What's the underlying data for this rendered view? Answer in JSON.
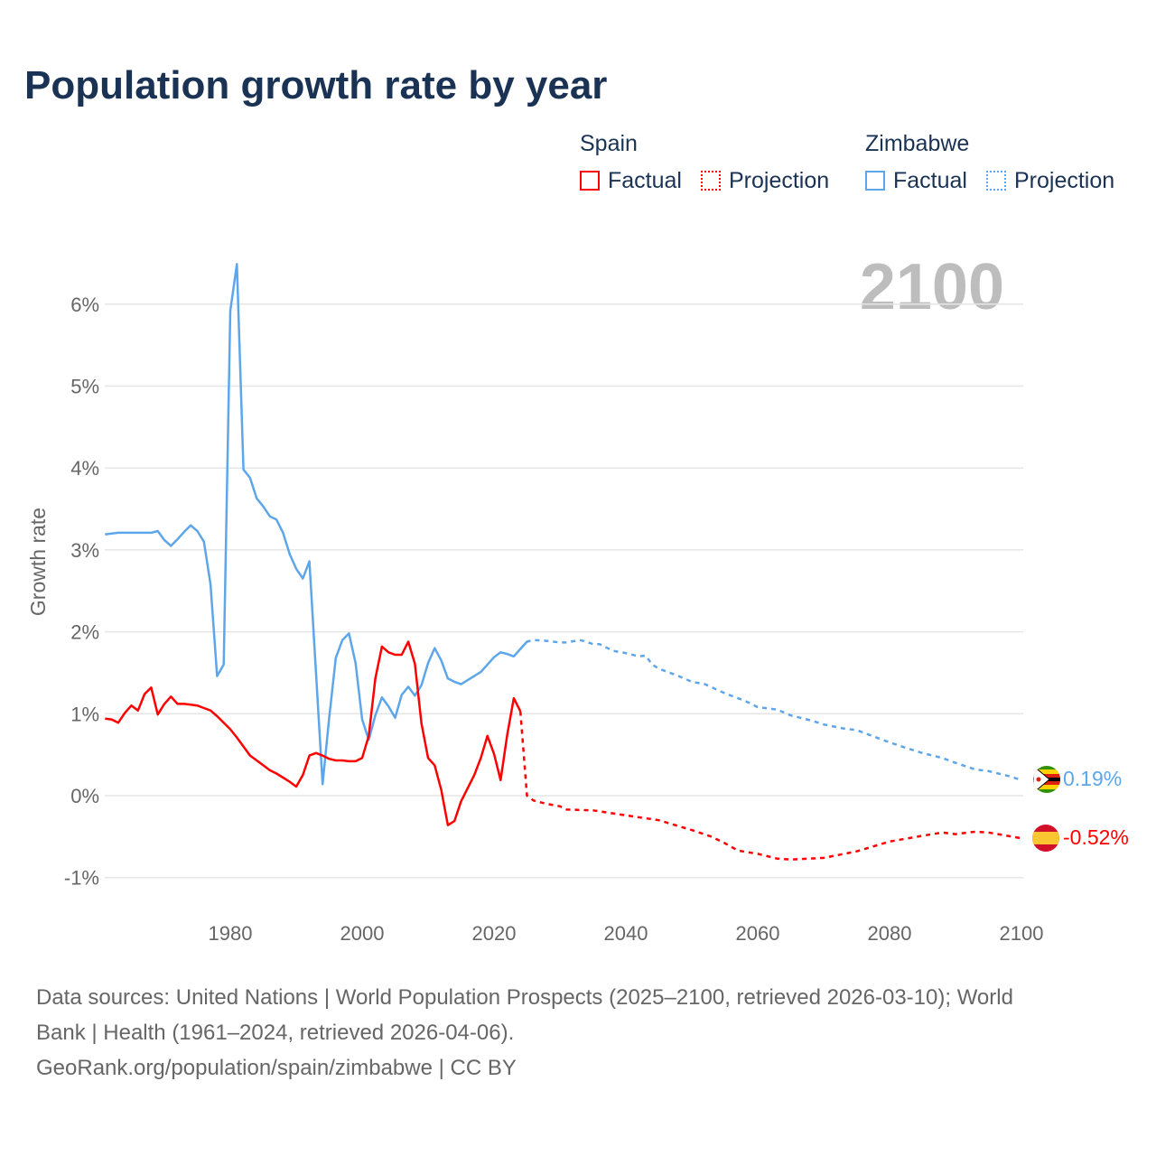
{
  "title": "Population growth rate by year",
  "legend": {
    "groups": [
      {
        "name": "Spain",
        "color": "#ff0000",
        "factual": "Factual",
        "projection": "Projection"
      },
      {
        "name": "Zimbabwe",
        "color": "#5ea6ea",
        "factual": "Factual",
        "projection": "Projection"
      }
    ]
  },
  "year_label": "2100",
  "end_labels": {
    "zimbabwe": "0.19%",
    "spain": "-0.52%"
  },
  "footer": {
    "line1": "Data sources: United Nations | World Population Prospects (2025–2100, retrieved 2026-03-10); World",
    "line2": "Bank | Health (1961–2024, retrieved 2026-04-06).",
    "line3": "GeoRank.org/population/spain/zimbabwe | CC BY"
  },
  "chart_data": {
    "type": "line",
    "title": "Population growth rate by year",
    "xlabel": "",
    "ylabel": "Growth rate",
    "xlim": [
      1961,
      2100
    ],
    "ylim": [
      -1.2,
      6.6
    ],
    "xticks": [
      1980,
      2000,
      2020,
      2040,
      2060,
      2080,
      2100
    ],
    "xtick_labels": [
      "1980",
      "2000",
      "2020",
      "2040",
      "2060",
      "2080",
      "2100"
    ],
    "yticks": [
      -1,
      0,
      1,
      2,
      3,
      4,
      5,
      6
    ],
    "ytick_labels": [
      "-1%",
      "0%",
      "1%",
      "2%",
      "3%",
      "4%",
      "5%",
      "6%"
    ],
    "grid": true,
    "series": [
      {
        "name": "Zimbabwe Factual",
        "color": "#5ea6ea",
        "dashed": false,
        "x_start": 1961,
        "values": [
          3.19,
          3.2,
          3.21,
          3.21,
          3.21,
          3.21,
          3.21,
          3.21,
          3.23,
          3.12,
          3.05,
          3.13,
          3.22,
          3.3,
          3.23,
          3.1,
          2.58,
          1.46,
          1.6,
          5.92,
          6.49,
          3.98,
          3.88,
          3.63,
          3.53,
          3.41,
          3.37,
          3.21,
          2.95,
          2.77,
          2.65,
          2.86,
          1.5,
          0.14,
          0.95,
          1.68,
          1.9,
          1.98,
          1.62,
          0.93,
          0.68,
          0.98,
          1.2,
          1.09,
          0.95,
          1.23,
          1.33,
          1.22,
          1.35,
          1.62,
          1.8,
          1.65,
          1.43,
          1.39,
          1.36,
          1.41,
          1.46,
          1.51,
          1.6,
          1.69,
          1.75,
          1.73,
          1.7,
          1.79,
          1.88
        ]
      },
      {
        "name": "Zimbabwe Projection",
        "color": "#5ea6ea",
        "dashed": true,
        "x": [
          2024,
          2025,
          2026,
          2028,
          2030,
          2031,
          2033,
          2034,
          2035,
          2036,
          2038,
          2040,
          2042,
          2043,
          2044,
          2045,
          2048,
          2050,
          2052,
          2055,
          2058,
          2060,
          2063,
          2065,
          2068,
          2070,
          2073,
          2075,
          2078,
          2080,
          2083,
          2085,
          2088,
          2090,
          2093,
          2095,
          2098,
          2100
        ],
        "values": [
          1.79,
          1.88,
          1.9,
          1.89,
          1.87,
          1.87,
          1.9,
          1.88,
          1.85,
          1.85,
          1.77,
          1.74,
          1.7,
          1.71,
          1.6,
          1.55,
          1.46,
          1.39,
          1.36,
          1.25,
          1.16,
          1.08,
          1.05,
          0.98,
          0.92,
          0.87,
          0.82,
          0.8,
          0.71,
          0.65,
          0.57,
          0.52,
          0.46,
          0.4,
          0.32,
          0.3,
          0.24,
          0.19
        ]
      },
      {
        "name": "Spain Factual",
        "color": "#ff0000",
        "dashed": false,
        "x_start": 1961,
        "values": [
          0.94,
          0.93,
          0.89,
          1.01,
          1.1,
          1.04,
          1.24,
          1.32,
          0.99,
          1.12,
          1.21,
          1.12,
          1.12,
          1.11,
          1.1,
          1.07,
          1.04,
          0.97,
          0.89,
          0.81,
          0.71,
          0.6,
          0.49,
          0.43,
          0.37,
          0.31,
          0.27,
          0.22,
          0.17,
          0.11,
          0.25,
          0.49,
          0.52,
          0.49,
          0.45,
          0.43,
          0.43,
          0.42,
          0.42,
          0.46,
          0.73,
          1.43,
          1.82,
          1.75,
          1.72,
          1.72,
          1.88,
          1.61,
          0.88,
          0.46,
          0.37,
          0.07,
          -0.36,
          -0.31,
          -0.07,
          0.09,
          0.25,
          0.46,
          0.73,
          0.51,
          0.19,
          0.74,
          1.19,
          1.03
        ]
      },
      {
        "name": "Spain Projection",
        "color": "#ff0000",
        "dashed": true,
        "x": [
          2024,
          2025,
          2026,
          2028,
          2030,
          2031,
          2035,
          2040,
          2045,
          2050,
          2053,
          2055,
          2057,
          2060,
          2063,
          2065,
          2070,
          2075,
          2080,
          2085,
          2088,
          2090,
          2093,
          2095,
          2100
        ],
        "values": [
          1.03,
          0.0,
          -0.06,
          -0.1,
          -0.13,
          -0.17,
          -0.18,
          -0.24,
          -0.3,
          -0.42,
          -0.5,
          -0.58,
          -0.67,
          -0.71,
          -0.77,
          -0.78,
          -0.76,
          -0.68,
          -0.56,
          -0.49,
          -0.45,
          -0.47,
          -0.44,
          -0.45,
          -0.52
        ]
      }
    ]
  }
}
